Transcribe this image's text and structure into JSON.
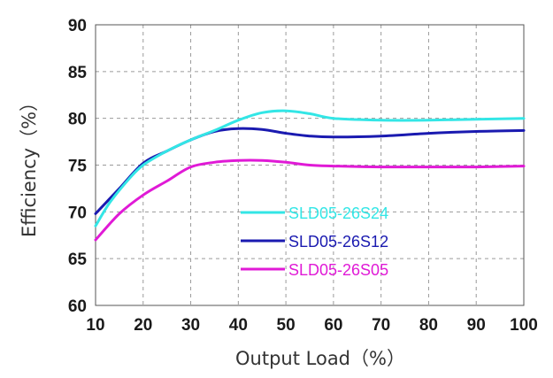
{
  "chart_data": {
    "type": "line",
    "xlabel": "Output Load（%）",
    "ylabel": "Efficiency（%）",
    "xlim": [
      10,
      100
    ],
    "ylim": [
      60,
      90
    ],
    "xticks": [
      10,
      20,
      30,
      40,
      50,
      60,
      70,
      80,
      90,
      100
    ],
    "yticks": [
      60,
      65,
      70,
      75,
      80,
      85,
      90
    ],
    "grid": true,
    "legend_position": "bottom-center",
    "series": [
      {
        "name": "SLD05-26S24",
        "color": "#33e6e6",
        "x": [
          10,
          13,
          17,
          20,
          25,
          30,
          35,
          40,
          45,
          50,
          55,
          60,
          70,
          80,
          90,
          100
        ],
        "y": [
          68.5,
          71.0,
          73.5,
          75.0,
          76.5,
          77.7,
          78.7,
          79.8,
          80.6,
          80.8,
          80.5,
          80.0,
          79.8,
          79.8,
          79.9,
          80.0
        ]
      },
      {
        "name": "SLD05-26S12",
        "color": "#1a1ab0",
        "x": [
          10,
          15,
          20,
          25,
          30,
          35,
          40,
          45,
          50,
          55,
          60,
          70,
          80,
          90,
          100
        ],
        "y": [
          69.8,
          72.5,
          75.2,
          76.5,
          77.7,
          78.6,
          78.9,
          78.8,
          78.4,
          78.1,
          78.0,
          78.1,
          78.4,
          78.6,
          78.7
        ]
      },
      {
        "name": "SLD05-26S05",
        "color": "#e01ad6",
        "x": [
          10,
          15,
          20,
          25,
          30,
          35,
          40,
          45,
          50,
          55,
          60,
          70,
          80,
          90,
          100
        ],
        "y": [
          67.0,
          69.8,
          71.8,
          73.3,
          74.8,
          75.3,
          75.5,
          75.5,
          75.3,
          75.0,
          74.9,
          74.8,
          74.8,
          74.8,
          74.9
        ]
      }
    ]
  }
}
